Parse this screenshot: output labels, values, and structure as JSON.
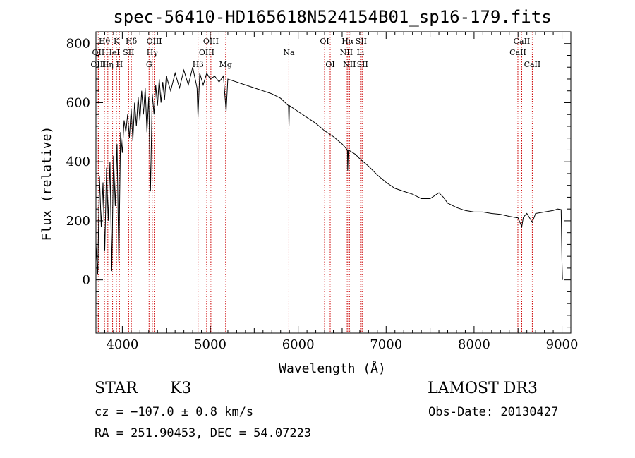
{
  "chart_data": {
    "type": "line",
    "title": "spec-56410-HD165618N524154B01_sp16-179.fits",
    "xlabel": "Wavelength (Å)",
    "ylabel": "Flux (relative)",
    "xlim": [
      3700,
      9100
    ],
    "ylim": [
      -180,
      840
    ],
    "x_ticks": [
      4000,
      5000,
      6000,
      7000,
      8000,
      9000
    ],
    "y_ticks": [
      0,
      200,
      400,
      600,
      800
    ],
    "series": [
      {
        "name": "spectrum",
        "points": [
          [
            3700,
            120
          ],
          [
            3720,
            20
          ],
          [
            3740,
            350
          ],
          [
            3760,
            180
          ],
          [
            3780,
            330
          ],
          [
            3800,
            100
          ],
          [
            3820,
            380
          ],
          [
            3840,
            200
          ],
          [
            3860,
            400
          ],
          [
            3880,
            30
          ],
          [
            3900,
            420
          ],
          [
            3920,
            250
          ],
          [
            3940,
            460
          ],
          [
            3960,
            60
          ],
          [
            3980,
            500
          ],
          [
            4000,
            430
          ],
          [
            4020,
            540
          ],
          [
            4040,
            500
          ],
          [
            4060,
            560
          ],
          [
            4080,
            480
          ],
          [
            4100,
            580
          ],
          [
            4120,
            470
          ],
          [
            4140,
            600
          ],
          [
            4160,
            520
          ],
          [
            4180,
            620
          ],
          [
            4200,
            540
          ],
          [
            4220,
            640
          ],
          [
            4240,
            560
          ],
          [
            4260,
            650
          ],
          [
            4280,
            500
          ],
          [
            4300,
            620
          ],
          [
            4320,
            300
          ],
          [
            4340,
            630
          ],
          [
            4360,
            560
          ],
          [
            4380,
            660
          ],
          [
            4400,
            590
          ],
          [
            4420,
            680
          ],
          [
            4440,
            600
          ],
          [
            4460,
            670
          ],
          [
            4480,
            610
          ],
          [
            4500,
            690
          ],
          [
            4550,
            640
          ],
          [
            4600,
            700
          ],
          [
            4650,
            650
          ],
          [
            4700,
            710
          ],
          [
            4750,
            660
          ],
          [
            4800,
            720
          ],
          [
            4850,
            650
          ],
          [
            4860,
            550
          ],
          [
            4880,
            700
          ],
          [
            4920,
            660
          ],
          [
            4960,
            700
          ],
          [
            5000,
            680
          ],
          [
            5050,
            690
          ],
          [
            5100,
            670
          ],
          [
            5150,
            690
          ],
          [
            5180,
            570
          ],
          [
            5200,
            680
          ],
          [
            5300,
            670
          ],
          [
            5400,
            660
          ],
          [
            5500,
            650
          ],
          [
            5600,
            640
          ],
          [
            5700,
            630
          ],
          [
            5800,
            615
          ],
          [
            5890,
            590
          ],
          [
            5895,
            520
          ],
          [
            5900,
            590
          ],
          [
            6000,
            570
          ],
          [
            6100,
            550
          ],
          [
            6200,
            530
          ],
          [
            6300,
            505
          ],
          [
            6400,
            485
          ],
          [
            6500,
            460
          ],
          [
            6560,
            440
          ],
          [
            6563,
            370
          ],
          [
            6570,
            440
          ],
          [
            6650,
            425
          ],
          [
            6700,
            410
          ],
          [
            6800,
            385
          ],
          [
            6900,
            355
          ],
          [
            7000,
            330
          ],
          [
            7100,
            310
          ],
          [
            7200,
            300
          ],
          [
            7300,
            290
          ],
          [
            7400,
            275
          ],
          [
            7500,
            275
          ],
          [
            7600,
            295
          ],
          [
            7650,
            280
          ],
          [
            7700,
            260
          ],
          [
            7800,
            245
          ],
          [
            7900,
            235
          ],
          [
            8000,
            230
          ],
          [
            8100,
            230
          ],
          [
            8200,
            225
          ],
          [
            8300,
            222
          ],
          [
            8400,
            215
          ],
          [
            8500,
            210
          ],
          [
            8542,
            180
          ],
          [
            8560,
            212
          ],
          [
            8600,
            225
          ],
          [
            8662,
            195
          ],
          [
            8700,
            225
          ],
          [
            8800,
            230
          ],
          [
            8900,
            235
          ],
          [
            8950,
            240
          ],
          [
            8990,
            238
          ],
          [
            9000,
            60
          ],
          [
            9005,
            0
          ]
        ]
      }
    ],
    "line_markers": [
      {
        "label": "Hθ",
        "x": 3797,
        "row": 1
      },
      {
        "label": "OII",
        "x": 3727,
        "row": 2
      },
      {
        "label": "OIII",
        "x": 3727,
        "row": 3
      },
      {
        "label": "K",
        "x": 3934,
        "row": 1
      },
      {
        "label": "HeI",
        "x": 3889,
        "row": 2
      },
      {
        "label": "Hη",
        "x": 3835,
        "row": 3
      },
      {
        "label": "H",
        "x": 3968,
        "row": 3
      },
      {
        "label": "Hδ",
        "x": 4102,
        "row": 1
      },
      {
        "label": "SII",
        "x": 4072,
        "row": 2
      },
      {
        "label": "OIII",
        "x": 4363,
        "row": 1
      },
      {
        "label": "Hγ",
        "x": 4341,
        "row": 2
      },
      {
        "label": "G",
        "x": 4304,
        "row": 3
      },
      {
        "label": "OIII",
        "x": 5007,
        "row": 1
      },
      {
        "label": "OIII",
        "x": 4959,
        "row": 2
      },
      {
        "label": "Hβ",
        "x": 4861,
        "row": 3
      },
      {
        "label": "Mg",
        "x": 5175,
        "row": 3
      },
      {
        "label": "Na",
        "x": 5894,
        "row": 2
      },
      {
        "label": "OI",
        "x": 6300,
        "row": 1
      },
      {
        "label": "OI",
        "x": 6364,
        "row": 3
      },
      {
        "label": "Hα",
        "x": 6563,
        "row": 1
      },
      {
        "label": "NII",
        "x": 6548,
        "row": 2
      },
      {
        "label": "NII",
        "x": 6583,
        "row": 3
      },
      {
        "label": "SII",
        "x": 6716,
        "row": 1
      },
      {
        "label": "Li",
        "x": 6708,
        "row": 2
      },
      {
        "label": "SII",
        "x": 6731,
        "row": 3
      },
      {
        "label": "CaII",
        "x": 8542,
        "row": 1
      },
      {
        "label": "CaII",
        "x": 8498,
        "row": 2
      },
      {
        "label": "CaII",
        "x": 8662,
        "row": 3
      }
    ]
  },
  "footer": {
    "object_class": "STAR",
    "subclass": "K3",
    "survey": "LAMOST DR3",
    "cz": "cz = −107.0 ± 0.8 km/s",
    "obs_date": "Obs-Date: 20130427",
    "coords": "RA = 251.90453, DEC =  54.07223"
  },
  "colors": {
    "line": "#000000",
    "marker": "#cc0000",
    "background": "#ffffff"
  }
}
